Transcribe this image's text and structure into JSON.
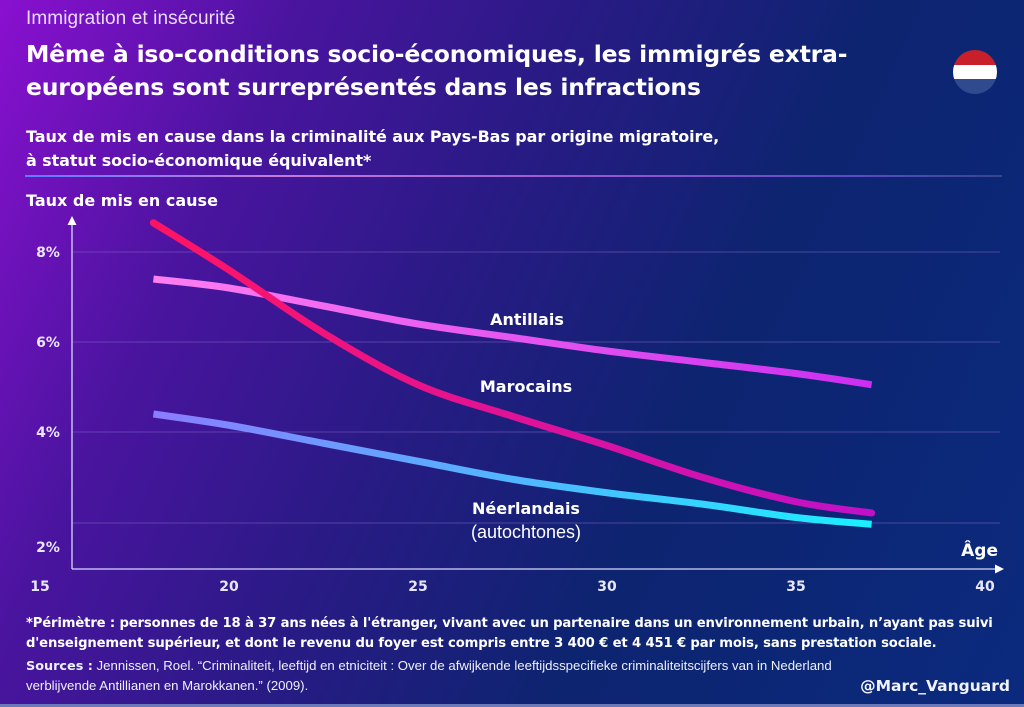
{
  "header": {
    "kicker": "Immigration et insécurité",
    "title": "Même à iso-conditions socio-économiques, les immigrés extra-européens sont surreprésentés dans les infractions",
    "subtitle_line1": "Taux de mis en cause dans la criminalité aux Pays-Bas par origine migratoire,",
    "subtitle_line2": "à statut socio-économique équivalent*",
    "flag_icon": "netherlands-flag-icon",
    "flag_colors": [
      "#c8202b",
      "#ffffff",
      "#2f4a8f"
    ]
  },
  "chart_data": {
    "type": "line",
    "title": "Taux de mis en cause dans la criminalité aux Pays-Bas par origine migratoire, à statut socio-économique équivalent*",
    "xlabel": "Âge",
    "ylabel": "Taux de mis en cause",
    "xlim": [
      15,
      40
    ],
    "ylim": [
      1,
      8.7
    ],
    "x_ticks": [
      15,
      20,
      25,
      30,
      35,
      40
    ],
    "x_tick_labels": [
      "15",
      "20",
      "25",
      "30",
      "35",
      "40"
    ],
    "y_ticks": [
      8,
      6,
      4,
      2
    ],
    "y_tick_labels": [
      "8%",
      "6%",
      "4%",
      "2%"
    ],
    "grid": true,
    "x": [
      18,
      20,
      22.5,
      25,
      27.5,
      30,
      32.5,
      35,
      37
    ],
    "series": [
      {
        "name": "Antillais",
        "label": "Antillais",
        "values": [
          7.4,
          7.2,
          6.8,
          6.4,
          6.1,
          5.8,
          5.55,
          5.3,
          5.05
        ],
        "colors": [
          "#ff7ef0",
          "#cc2ef0"
        ]
      },
      {
        "name": "Marocains",
        "label": "Marocains",
        "values": [
          8.65,
          7.6,
          6.2,
          5.05,
          4.35,
          3.7,
          3.0,
          2.45,
          2.2
        ],
        "colors": [
          "#ff1463",
          "#c011c9"
        ]
      },
      {
        "name": "Néerlandais (autochtones)",
        "label": "Néerlandais",
        "label2": "(autochtones)",
        "values": [
          4.4,
          4.15,
          3.75,
          3.35,
          2.95,
          2.65,
          2.4,
          2.1,
          1.95
        ],
        "colors": [
          "#8a7cff",
          "#19f0ff"
        ]
      }
    ],
    "legend": "inline labels"
  },
  "footer": {
    "footnote_line1": "*Périmètre : personnes de 18 à 37 ans nées à l'étranger, vivant avec un partenaire dans un environnement urbain, n’ayant pas suivi",
    "footnote_line2": "d'enseignement supérieur, et dont le revenu du foyer est compris entre 3 400 € et 4 451 € par mois, sans prestation sociale.",
    "sources_label": "Sources :",
    "sources_line1": " Jennissen, Roel. “Criminaliteit, leeftijd en etniciteit : Over de afwijkende leeftijdsspecifieke criminaliteitscijfers van in Nederland",
    "sources_line2": "verblijvende Antillianen en Marokkanen.” (2009).",
    "handle": "@Marc_Vanguard"
  }
}
